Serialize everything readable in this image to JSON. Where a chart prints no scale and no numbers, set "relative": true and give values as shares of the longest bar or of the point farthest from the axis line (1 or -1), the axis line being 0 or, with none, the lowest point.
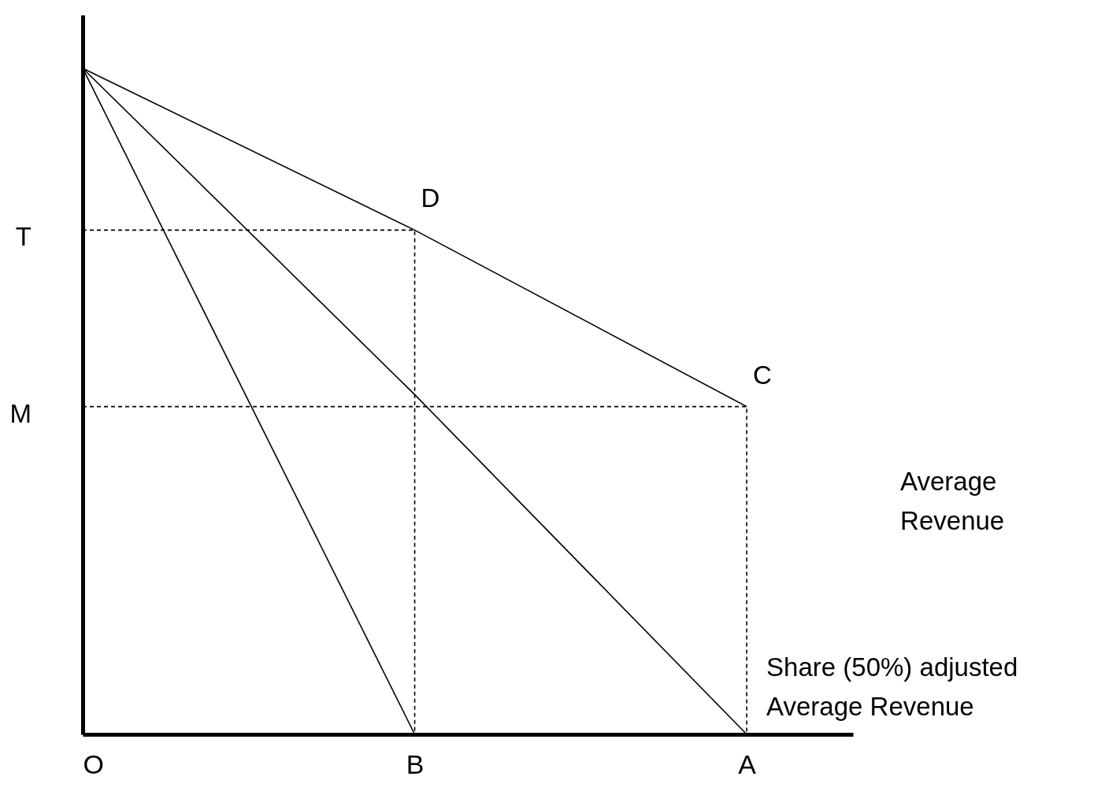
{
  "chart_data": {
    "type": "line",
    "relative": true,
    "tick_labels": "x",
    "categories": [
      "O",
      "B",
      "A"
    ],
    "series": [
      {
        "color": "#000000",
        "values": [
          1,
          0,
          null
        ]
      },
      {
        "name": "Share (50%) adjusted Average Revenue",
        "color": "#000000",
        "values": [
          1,
          0.51,
          0
        ]
      },
      {
        "name": "Average Revenue",
        "color": "#000000",
        "values": [
          1,
          0.757,
          0.492
        ]
      },
      {
        "color": "#000000",
        "line_style": "dashed",
        "x": [
          "O",
          "B",
          "B"
        ],
        "values": [
          0.757,
          0.757,
          0
        ]
      },
      {
        "color": "#000000",
        "line_style": "dashed",
        "x": [
          "O",
          "A",
          "A"
        ],
        "values": [
          0.492,
          0.492,
          0
        ]
      }
    ],
    "annotations": [
      {
        "text": "T",
        "x": "O",
        "y": 0.757
      },
      {
        "text": "M",
        "x": "O",
        "y": 0.492
      },
      {
        "text": "D",
        "x": "B",
        "y": 0.757
      },
      {
        "text": "C",
        "x": "A",
        "y": 0.492
      }
    ]
  }
}
